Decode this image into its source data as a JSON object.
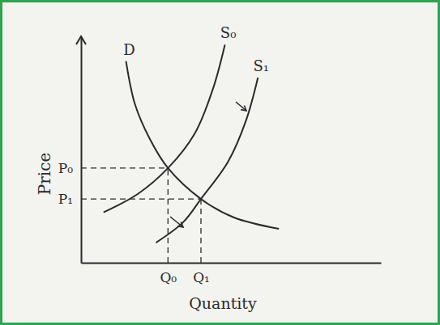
{
  "chart_data": {
    "type": "line",
    "x_label": "Quantity",
    "y_label": "Price",
    "xlim": [
      0,
      10
    ],
    "ylim": [
      0,
      11
    ],
    "xticks": [
      {
        "value": 2.9,
        "label": "Q₀"
      },
      {
        "value": 4.0,
        "label": "Q₁"
      }
    ],
    "yticks": [
      {
        "value": 4.6,
        "label": "P₀"
      },
      {
        "value": 3.1,
        "label": "P₁"
      }
    ],
    "series": [
      {
        "name": "D",
        "color": "#2a2a2a",
        "x": [
          1.5,
          1.8,
          2.3,
          2.9,
          4.0,
          5.1,
          6.6
        ],
        "values": [
          9.8,
          7.7,
          6.0,
          4.6,
          3.1,
          2.2,
          1.65
        ]
      },
      {
        "name": "S₀",
        "color": "#2a2a2a",
        "x": [
          0.75,
          1.9,
          2.9,
          3.8,
          4.4,
          4.8
        ],
        "values": [
          2.45,
          3.35,
          4.6,
          6.3,
          8.45,
          10.6
        ]
      },
      {
        "name": "S₁",
        "color": "#2a2a2a",
        "x": [
          2.5,
          3.4,
          4.0,
          4.9,
          5.5,
          5.9
        ],
        "values": [
          0.98,
          1.96,
          3.1,
          4.9,
          6.9,
          9.0
        ]
      }
    ]
  }
}
